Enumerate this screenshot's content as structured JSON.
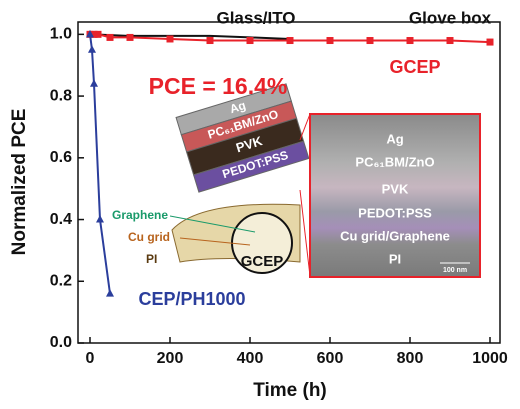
{
  "chart_data": {
    "type": "line",
    "xlabel": "Time (h)",
    "ylabel": "Normalized PCE",
    "xlim": [
      -30,
      1025
    ],
    "ylim": [
      0,
      1.04
    ],
    "xticks": [
      0,
      200,
      400,
      600,
      800,
      1000
    ],
    "yticks": [
      {
        "value": 0,
        "label": "0.0"
      },
      0.2,
      0.4,
      0.6,
      0.8,
      {
        "value": 1,
        "label": "1.0"
      }
    ],
    "series": [
      {
        "name": "Glass/ITO",
        "color": "#111111",
        "marker": "none",
        "x": [
          0,
          100,
          200,
          300,
          400,
          500
        ],
        "values": [
          1.0,
          0.995,
          0.995,
          0.995,
          0.99,
          0.985
        ]
      },
      {
        "name": "GCEP",
        "color": "#e8222a",
        "marker": "square",
        "x": [
          0,
          10,
          20,
          50,
          100,
          200,
          300,
          400,
          500,
          600,
          700,
          800,
          900,
          1000
        ],
        "values": [
          1.0,
          1.0,
          1.0,
          0.99,
          0.99,
          0.985,
          0.98,
          0.98,
          0.98,
          0.98,
          0.98,
          0.98,
          0.98,
          0.975
        ]
      },
      {
        "name": "CEP/PH1000",
        "color": "#2b3e9c",
        "marker": "triangle",
        "x": [
          0,
          5,
          10,
          25,
          50
        ],
        "values": [
          1.0,
          0.95,
          0.84,
          0.4,
          0.16
        ]
      }
    ],
    "annotations": [
      "Glove box",
      "PCE = 16.4%"
    ],
    "schematic": {
      "layers": [
        "Ag",
        "PC₆₁BM/ZnO",
        "PVK",
        "PEDOT:PSS"
      ],
      "substrate": [
        "Graphene",
        "Cu grid",
        "PI"
      ],
      "label": "GCEP"
    },
    "inset": {
      "layers": [
        "Ag",
        "PC₆₁BM/ZnO",
        "PVK",
        "PEDOT:PSS",
        "Cu grid/Graphene",
        "PI"
      ],
      "scale_bar": "100 nm"
    }
  }
}
